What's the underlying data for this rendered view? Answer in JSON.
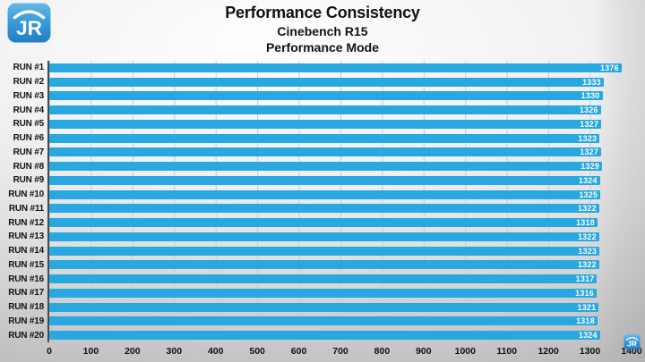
{
  "logo": {
    "text": "JR"
  },
  "chart_data": {
    "type": "bar",
    "orientation": "horizontal",
    "title": "Performance Consistency",
    "subtitle_line1": "Cinebench R15",
    "subtitle_line2": "Performance Mode",
    "categories": [
      "RUN #1",
      "RUN #2",
      "RUN #3",
      "RUN #4",
      "RUN #5",
      "RUN #6",
      "RUN #7",
      "RUN #8",
      "RUN #9",
      "RUN #10",
      "RUN #11",
      "RUN #12",
      "RUN #13",
      "RUN #14",
      "RUN #15",
      "RUN #16",
      "RUN #17",
      "RUN #18",
      "RUN #19",
      "RUN #20"
    ],
    "values": [
      1376,
      1333,
      1330,
      1326,
      1327,
      1323,
      1327,
      1329,
      1324,
      1325,
      1322,
      1318,
      1322,
      1323,
      1322,
      1317,
      1316,
      1321,
      1318,
      1324
    ],
    "xlabel": "",
    "ylabel": "",
    "xlim": [
      0,
      1400
    ],
    "xticks": [
      0,
      100,
      200,
      300,
      400,
      500,
      600,
      700,
      800,
      900,
      1000,
      1100,
      1200,
      1300,
      1400
    ],
    "grid": true,
    "legend": false,
    "colors": {
      "bar": "#27a8e0",
      "value_label": "#ffffff",
      "category_label": "#121212",
      "tick_label": "#121212",
      "axis_line": "#4a4a4a",
      "grid_line": "#c7cbce",
      "title": "#111111"
    }
  }
}
